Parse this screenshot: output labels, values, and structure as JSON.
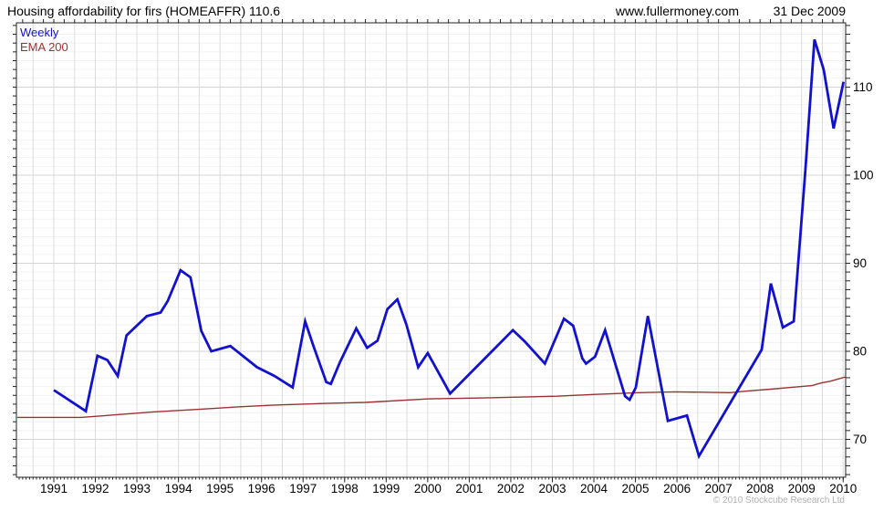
{
  "header": {
    "title": "Housing affordability for firs (HOMEAFFR) 110.6",
    "website": "www.fullermoney.com",
    "date": "31 Dec 2009"
  },
  "legend": {
    "items": [
      {
        "label": "Weekly",
        "color": "#1111cf"
      },
      {
        "label": "EMA 200",
        "color": "#993333"
      }
    ]
  },
  "footer": {
    "copyright": "© 2010 Stockcube Research Ltd"
  },
  "colors": {
    "weekly_line": "#1111cf",
    "ema_line": "#993333",
    "grid_minor": "#f2f2f2",
    "grid_vertical": "#dcdcdc",
    "grid_major": "#d5d5d5",
    "frame": "#222222",
    "tick": "#222222",
    "axis_label": "#000000"
  },
  "chart_data": {
    "type": "line",
    "title": "Housing affordability for firs (HOMEAFFR)",
    "latest_value": 110.6,
    "frequency": "Weekly",
    "overlay": "EMA 200",
    "x_axis": {
      "min": 1990.1,
      "max": 2010.06,
      "tick_years": [
        1991,
        1992,
        1993,
        1994,
        1995,
        1996,
        1997,
        1998,
        1999,
        2000,
        2001,
        2002,
        2003,
        2004,
        2005,
        2006,
        2007,
        2008,
        2009,
        2010
      ],
      "gridline_interval_years": 0.5
    },
    "y_axis": {
      "min": 65.7,
      "max": 117.3,
      "tick_labels": [
        70,
        80,
        90,
        100,
        110
      ],
      "minor_gridline_step": 1,
      "major_gridline_step": 10
    },
    "series": [
      {
        "name": "Weekly",
        "color": "#1111cf",
        "width": 2.8,
        "points": [
          [
            1991.0,
            75.6
          ],
          [
            1991.77,
            73.2
          ],
          [
            1992.05,
            79.5
          ],
          [
            1992.29,
            79.0
          ],
          [
            1992.54,
            77.2
          ],
          [
            1992.75,
            81.8
          ],
          [
            1993.24,
            84.0
          ],
          [
            1993.57,
            84.4
          ],
          [
            1993.74,
            85.7
          ],
          [
            1994.05,
            89.2
          ],
          [
            1994.29,
            88.4
          ],
          [
            1994.55,
            82.3
          ],
          [
            1994.79,
            80.0
          ],
          [
            1995.25,
            80.6
          ],
          [
            1995.89,
            78.2
          ],
          [
            1996.31,
            77.2
          ],
          [
            1996.75,
            75.9
          ],
          [
            1997.05,
            83.4
          ],
          [
            1997.25,
            80.6
          ],
          [
            1997.56,
            76.5
          ],
          [
            1997.67,
            76.3
          ],
          [
            1997.89,
            78.8
          ],
          [
            1998.28,
            82.6
          ],
          [
            1998.54,
            80.4
          ],
          [
            1998.79,
            81.2
          ],
          [
            1999.03,
            84.8
          ],
          [
            1999.27,
            85.9
          ],
          [
            1999.49,
            83.0
          ],
          [
            1999.77,
            78.2
          ],
          [
            2000.0,
            79.8
          ],
          [
            2000.54,
            75.2
          ],
          [
            2002.05,
            82.4
          ],
          [
            2002.34,
            81.1
          ],
          [
            2002.82,
            78.6
          ],
          [
            2003.28,
            83.7
          ],
          [
            2003.5,
            82.9
          ],
          [
            2003.72,
            79.2
          ],
          [
            2003.81,
            78.6
          ],
          [
            2004.03,
            79.4
          ],
          [
            2004.27,
            82.4
          ],
          [
            2004.75,
            74.9
          ],
          [
            2004.86,
            74.5
          ],
          [
            2005.01,
            75.9
          ],
          [
            2005.3,
            84.0
          ],
          [
            2005.78,
            72.1
          ],
          [
            2006.24,
            72.7
          ],
          [
            2006.37,
            70.6
          ],
          [
            2006.53,
            68.1
          ],
          [
            2008.04,
            80.2
          ],
          [
            2008.26,
            87.7
          ],
          [
            2008.55,
            82.7
          ],
          [
            2008.81,
            83.4
          ],
          [
            2009.09,
            100.5
          ],
          [
            2009.31,
            115.4
          ],
          [
            2009.53,
            112.0
          ],
          [
            2009.77,
            105.3
          ],
          [
            2010.01,
            110.6
          ]
        ]
      },
      {
        "name": "EMA 200",
        "color": "#993333",
        "width": 1.4,
        "points": [
          [
            1990.12,
            72.5
          ],
          [
            1991.66,
            72.5
          ],
          [
            1992.25,
            72.7
          ],
          [
            1993.35,
            73.1
          ],
          [
            1994.44,
            73.4
          ],
          [
            1995.47,
            73.7
          ],
          [
            1996.31,
            73.9
          ],
          [
            1997.62,
            74.1
          ],
          [
            1998.5,
            74.2
          ],
          [
            2000.04,
            74.6
          ],
          [
            2001.35,
            74.7
          ],
          [
            2003.11,
            74.9
          ],
          [
            2003.98,
            75.1
          ],
          [
            2005.08,
            75.3
          ],
          [
            2005.96,
            75.4
          ],
          [
            2007.27,
            75.3
          ],
          [
            2007.71,
            75.5
          ],
          [
            2008.26,
            75.7
          ],
          [
            2008.74,
            75.9
          ],
          [
            2009.25,
            76.1
          ],
          [
            2009.47,
            76.4
          ],
          [
            2009.69,
            76.6
          ],
          [
            2009.91,
            76.9
          ],
          [
            2010.06,
            77.1
          ]
        ]
      }
    ]
  }
}
